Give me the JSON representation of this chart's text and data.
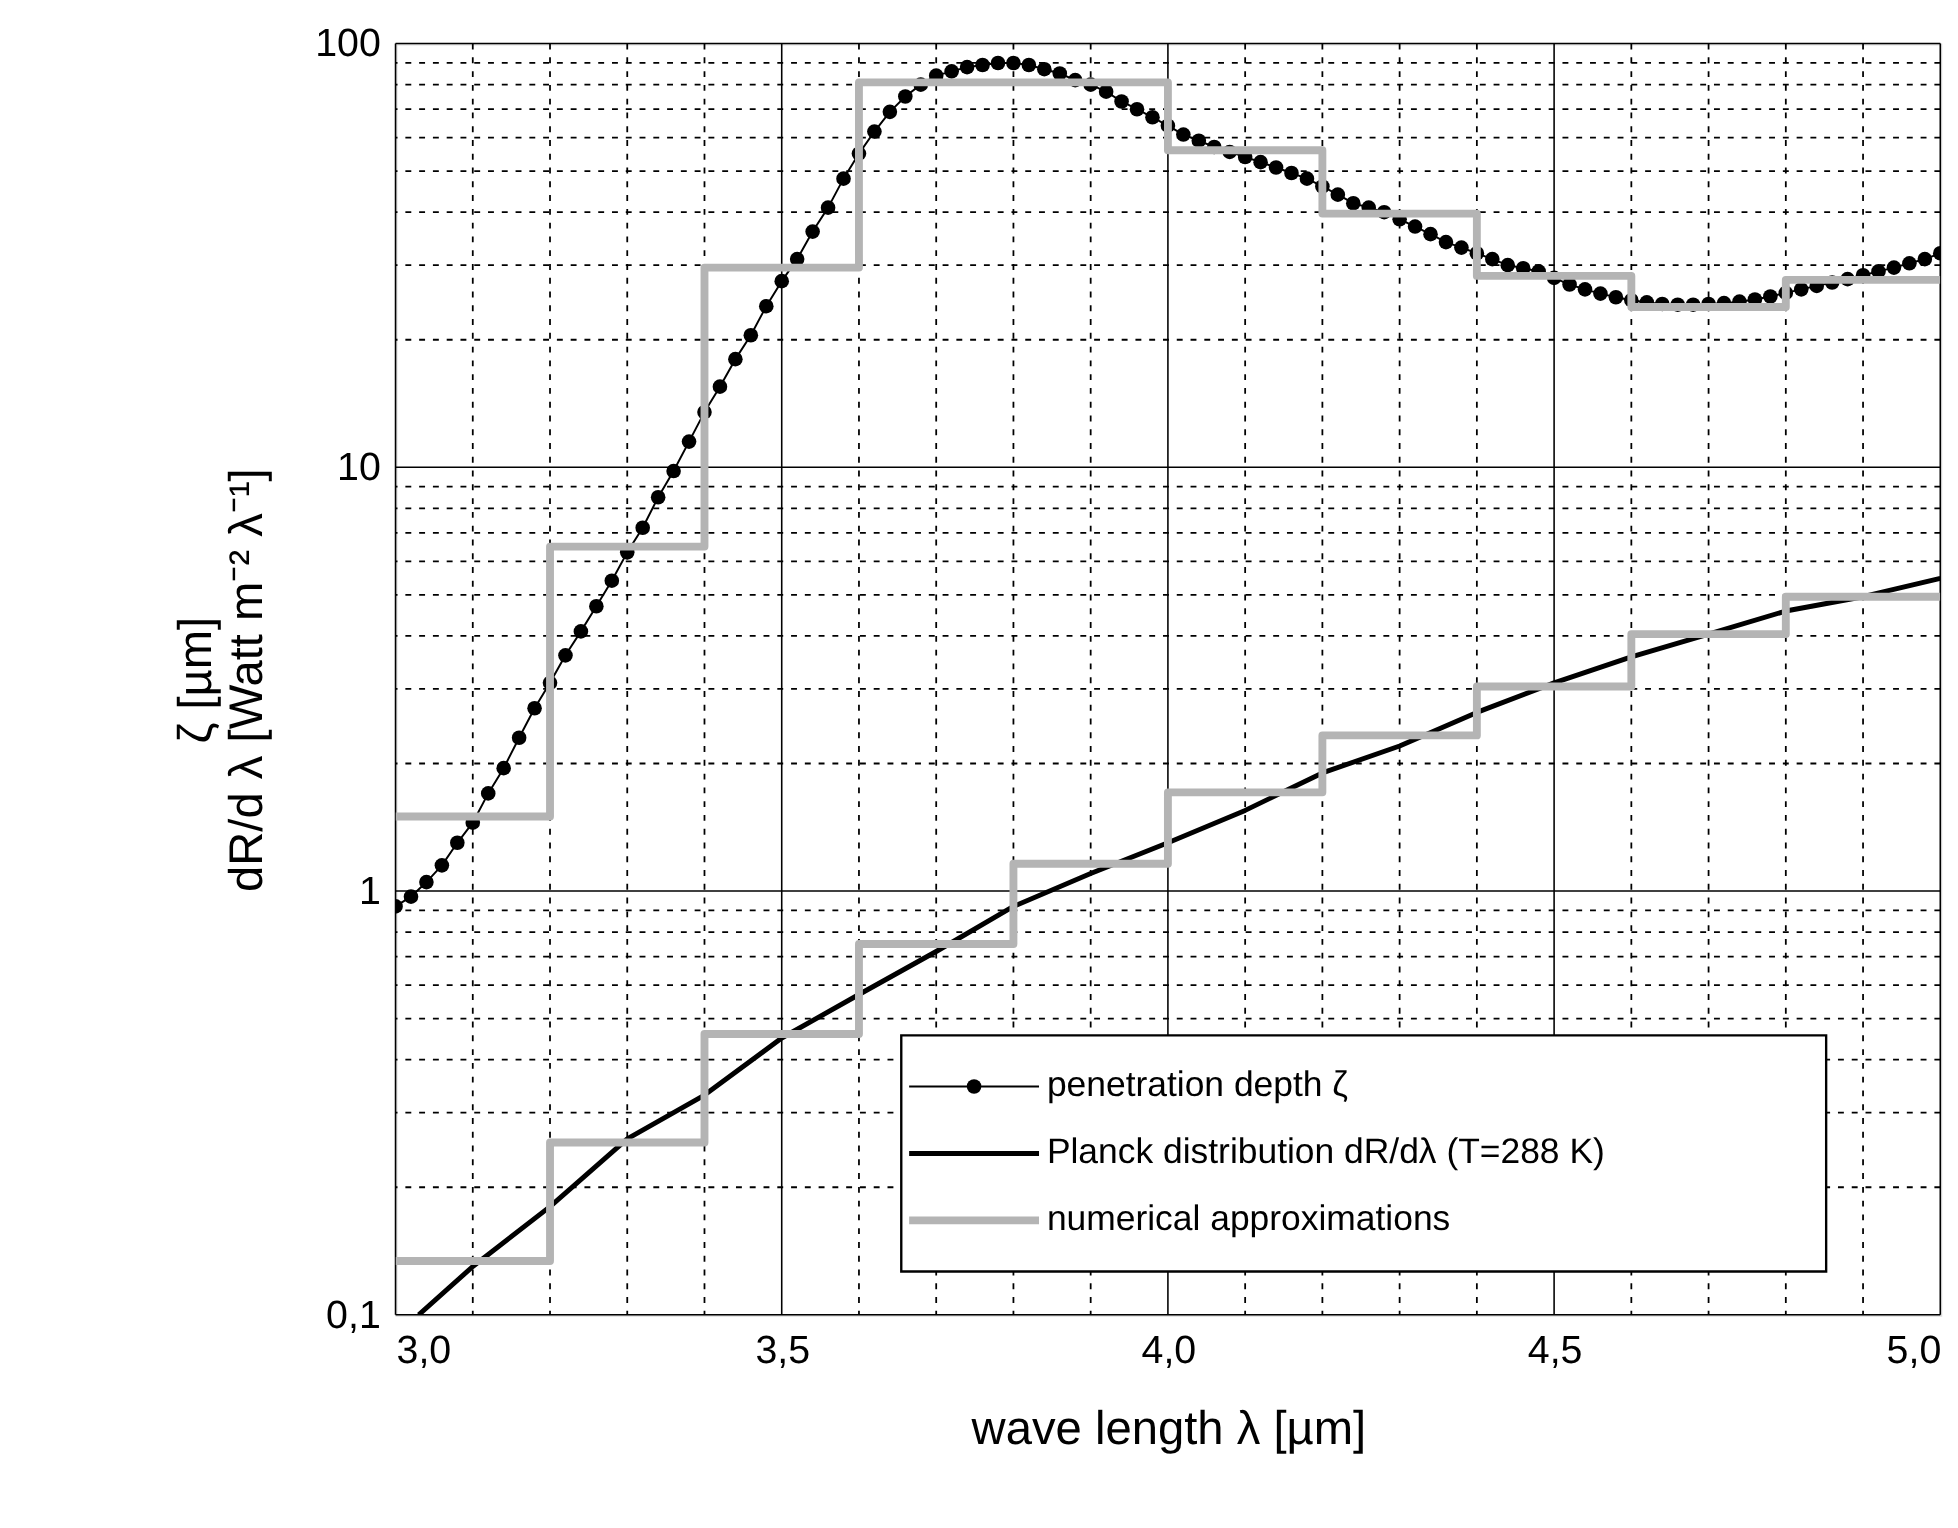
{
  "chart_data": {
    "type": "line",
    "xlabel": "wave length λ [µm]",
    "ylabel": [
      "ζ [µm]",
      "dR/d λ [Watt m⁻² λ⁻¹]"
    ],
    "log": "y",
    "grid": true,
    "legend": "bottom right",
    "xlim": [
      3.0,
      5.0
    ],
    "xticks": [
      {
        "value": 3.0,
        "label": "3,0"
      },
      {
        "value": 3.1,
        "label": null
      },
      {
        "value": 3.2,
        "label": null
      },
      {
        "value": 3.3,
        "label": null
      },
      {
        "value": 3.4,
        "label": null
      },
      {
        "value": 3.5,
        "label": "3,5"
      },
      {
        "value": 3.6,
        "label": null
      },
      {
        "value": 3.7,
        "label": null
      },
      {
        "value": 3.8,
        "label": null
      },
      {
        "value": 3.9,
        "label": null
      },
      {
        "value": 4.0,
        "label": "4,0"
      },
      {
        "value": 4.1,
        "label": null
      },
      {
        "value": 4.2,
        "label": null
      },
      {
        "value": 4.3,
        "label": null
      },
      {
        "value": 4.4,
        "label": null
      },
      {
        "value": 4.5,
        "label": "4,5"
      },
      {
        "value": 4.6,
        "label": null
      },
      {
        "value": 4.7,
        "label": null
      },
      {
        "value": 4.8,
        "label": null
      },
      {
        "value": 4.9,
        "label": null
      },
      {
        "value": 5.0,
        "label": "5,0"
      }
    ],
    "ylim": [
      0.1,
      100
    ],
    "yticks": [
      {
        "value": 0.1,
        "label": "0,1"
      },
      {
        "value": 0.2,
        "label": null
      },
      {
        "value": 0.3,
        "label": null
      },
      {
        "value": 0.4,
        "label": null
      },
      {
        "value": 0.5,
        "label": null
      },
      {
        "value": 0.6,
        "label": null
      },
      {
        "value": 0.7,
        "label": null
      },
      {
        "value": 0.8,
        "label": null
      },
      {
        "value": 0.9,
        "label": null
      },
      1,
      {
        "value": 2,
        "label": null
      },
      {
        "value": 3,
        "label": null
      },
      {
        "value": 4,
        "label": null
      },
      {
        "value": 5,
        "label": null
      },
      {
        "value": 6,
        "label": null
      },
      {
        "value": 7,
        "label": null
      },
      {
        "value": 8,
        "label": null
      },
      {
        "value": 9,
        "label": null
      },
      10,
      {
        "value": 20,
        "label": null
      },
      {
        "value": 30,
        "label": null
      },
      {
        "value": 40,
        "label": null
      },
      {
        "value": 50,
        "label": null
      },
      {
        "value": 60,
        "label": null
      },
      {
        "value": 70,
        "label": null
      },
      {
        "value": 80,
        "label": null
      },
      {
        "value": 90,
        "label": null
      },
      100
    ],
    "series": [
      {
        "name": "penetration depth ζ",
        "type": "line",
        "marker": "circle",
        "color": "#000000",
        "x": [
          3.0,
          3.02,
          3.04,
          3.06,
          3.08,
          3.1,
          3.12,
          3.14,
          3.16,
          3.18,
          3.2,
          3.22,
          3.24,
          3.26,
          3.28,
          3.3,
          3.32,
          3.34,
          3.36,
          3.38,
          3.4,
          3.42,
          3.44,
          3.46,
          3.48,
          3.5,
          3.52,
          3.54,
          3.56,
          3.58,
          3.6,
          3.62,
          3.64,
          3.66,
          3.68,
          3.7,
          3.72,
          3.74,
          3.76,
          3.78,
          3.8,
          3.82,
          3.84,
          3.86,
          3.88,
          3.9,
          3.92,
          3.94,
          3.96,
          3.98,
          4.0,
          4.02,
          4.04,
          4.06,
          4.08,
          4.1,
          4.12,
          4.14,
          4.16,
          4.18,
          4.2,
          4.22,
          4.24,
          4.26,
          4.28,
          4.3,
          4.32,
          4.34,
          4.36,
          4.38,
          4.4,
          4.42,
          4.44,
          4.46,
          4.48,
          4.5,
          4.52,
          4.54,
          4.56,
          4.58,
          4.6,
          4.62,
          4.64,
          4.66,
          4.68,
          4.7,
          4.72,
          4.74,
          4.76,
          4.78,
          4.8,
          4.82,
          4.84,
          4.86,
          4.88,
          4.9,
          4.92,
          4.94,
          4.96,
          4.98,
          5.0
        ],
        "values": [
          0.92,
          0.97,
          1.05,
          1.15,
          1.3,
          1.45,
          1.7,
          1.95,
          2.3,
          2.7,
          3.1,
          3.6,
          4.1,
          4.7,
          5.4,
          6.3,
          7.2,
          8.5,
          9.8,
          11.5,
          13.5,
          15.5,
          18,
          20.5,
          24,
          27.5,
          31,
          36,
          41,
          48,
          55,
          62,
          69,
          75,
          80,
          84,
          86,
          88,
          89,
          90,
          90,
          89,
          87,
          85,
          82,
          80,
          77,
          73,
          70,
          67,
          64,
          61,
          59,
          57,
          55.5,
          54,
          52.5,
          51,
          49.5,
          48,
          46,
          44,
          42,
          41,
          40,
          38.5,
          37,
          35.5,
          34,
          33,
          32,
          31,
          30,
          29.5,
          29,
          28,
          27,
          26.3,
          25.7,
          25.2,
          24.8,
          24.5,
          24.3,
          24.2,
          24.2,
          24.3,
          24.4,
          24.6,
          24.9,
          25.3,
          25.8,
          26.3,
          26.8,
          27.3,
          27.8,
          28.4,
          29,
          29.6,
          30.3,
          31,
          32
        ]
      },
      {
        "name": "Planck distribution dR/dλ (T=288 K)",
        "type": "line",
        "color": "#000000",
        "x": [
          3.03,
          3.1,
          3.2,
          3.3,
          3.4,
          3.5,
          3.6,
          3.7,
          3.8,
          3.9,
          4.0,
          4.1,
          4.2,
          4.3,
          4.4,
          4.5,
          4.6,
          4.7,
          4.8,
          4.9,
          5.0
        ],
        "values": [
          0.1,
          0.13,
          0.18,
          0.26,
          0.33,
          0.45,
          0.57,
          0.72,
          0.92,
          1.1,
          1.3,
          1.55,
          1.9,
          2.2,
          2.64,
          3.1,
          3.57,
          4.04,
          4.58,
          4.95,
          5.47
        ]
      },
      {
        "name": "numerical approximations",
        "type": "step",
        "color": "#b4b4b4",
        "x": [
          3.0,
          3.2,
          3.4,
          3.6,
          3.8,
          4.0,
          4.2,
          4.4,
          4.6,
          4.8,
          5.0
        ],
        "values": [
          1.5,
          6.5,
          29.6,
          81,
          81,
          56,
          39.7,
          28.3,
          23.9,
          27.7,
          27.7
        ]
      },
      {
        "type": "step",
        "color": "#b4b4b4",
        "x": [
          3.0,
          3.2,
          3.4,
          3.6,
          3.8,
          4.0,
          4.2,
          4.4,
          4.6,
          4.8,
          5.0
        ],
        "values": [
          0.134,
          0.255,
          0.46,
          0.75,
          1.16,
          1.71,
          2.33,
          3.04,
          4.04,
          4.95,
          4.95
        ]
      }
    ]
  }
}
